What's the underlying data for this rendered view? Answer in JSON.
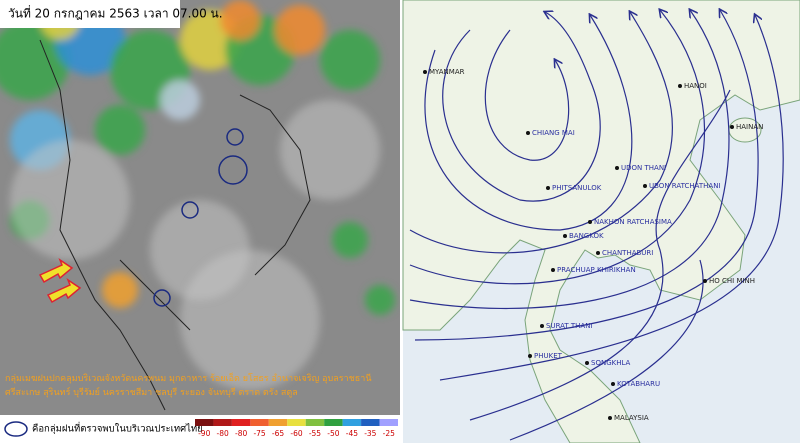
{
  "left_panel": {
    "title": "วันที่ 20 กรกฎาคม 2563 เวลา 07.00 น.",
    "caption": "กลุ่มเมฆฝนปกคลุมบริเวณจังหวัดนครพนม มุกดาหาร ร้อยเอ็ด ยโสธร อำนาจเจริญ อุบลราชธานี ศรีสะเกษ สุรินทร์ บุรีรัมย์ นครราชสีมา ชลบุรี ระยอง จันทบุรี ตราด ตรัง สตูล",
    "legend_text": "คือกลุ่มฝนที่ตรวจพบในบริเวณประเทศไทย",
    "scale_ticks": [
      -90,
      -80,
      -80,
      -75,
      -65,
      -60,
      -55,
      -50,
      -45,
      -35,
      -25
    ]
  },
  "right_panel": {
    "cities": [
      {
        "label": "MYANMAR"
      },
      {
        "label": "HANOI"
      },
      {
        "label": "HAINAN"
      },
      {
        "label": "CHIANG MAI"
      },
      {
        "label": "UDON THANI"
      },
      {
        "label": "PHITSANULOK"
      },
      {
        "label": "UBON RATCHATHANI"
      },
      {
        "label": "NAKHON RATCHASIMA"
      },
      {
        "label": "BANGKOK"
      },
      {
        "label": "CHANTHABURI"
      },
      {
        "label": "PRACHUAP KHIRIKHAN"
      },
      {
        "label": "HO CHI MINH"
      },
      {
        "label": "SURAT THANI"
      },
      {
        "label": "PHUKET"
      },
      {
        "label": "SONGKHLA"
      },
      {
        "label": "KOTABHARU"
      },
      {
        "label": "MALAYSIA"
      }
    ]
  }
}
